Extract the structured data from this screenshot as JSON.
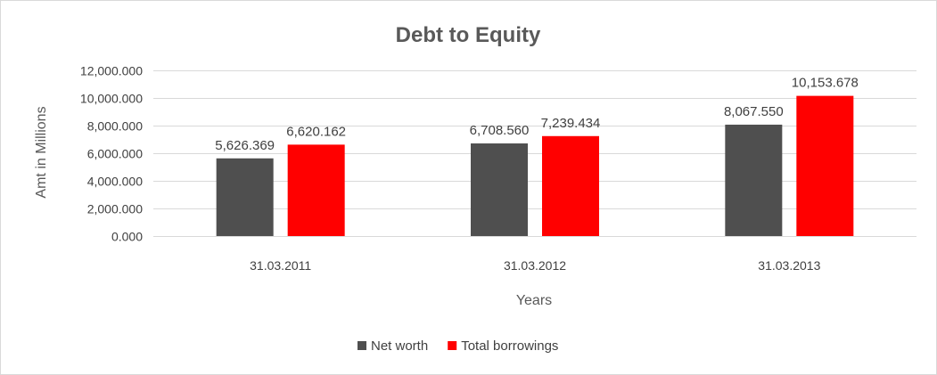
{
  "chart_data": {
    "type": "bar",
    "title": "Debt to Equity",
    "xlabel": "Years",
    "ylabel": "Amt in Millions",
    "categories": [
      "31.03.2011",
      "31.03.2012",
      "31.03.2013"
    ],
    "series": [
      {
        "name": "Net worth",
        "values": [
          5626.369,
          6708.56,
          8067.55
        ],
        "labels": [
          "5,626.369",
          "6,708.560",
          "8,067.550"
        ],
        "color": "#4f4f4f"
      },
      {
        "name": "Total borrowings",
        "values": [
          6620.162,
          7239.434,
          10153.678
        ],
        "labels": [
          "6,620.162",
          "7,239.434",
          "10,153.678"
        ],
        "color": "#ff0000"
      }
    ],
    "ylim": [
      0,
      12000
    ],
    "yticks": [
      0,
      2000,
      4000,
      6000,
      8000,
      10000,
      12000
    ],
    "ytick_labels": [
      "0.000",
      "2,000.000",
      "4,000.000",
      "6,000.000",
      "8,000.000",
      "10,000.000",
      "12,000.000"
    ],
    "grid": true,
    "legend_position": "bottom"
  }
}
